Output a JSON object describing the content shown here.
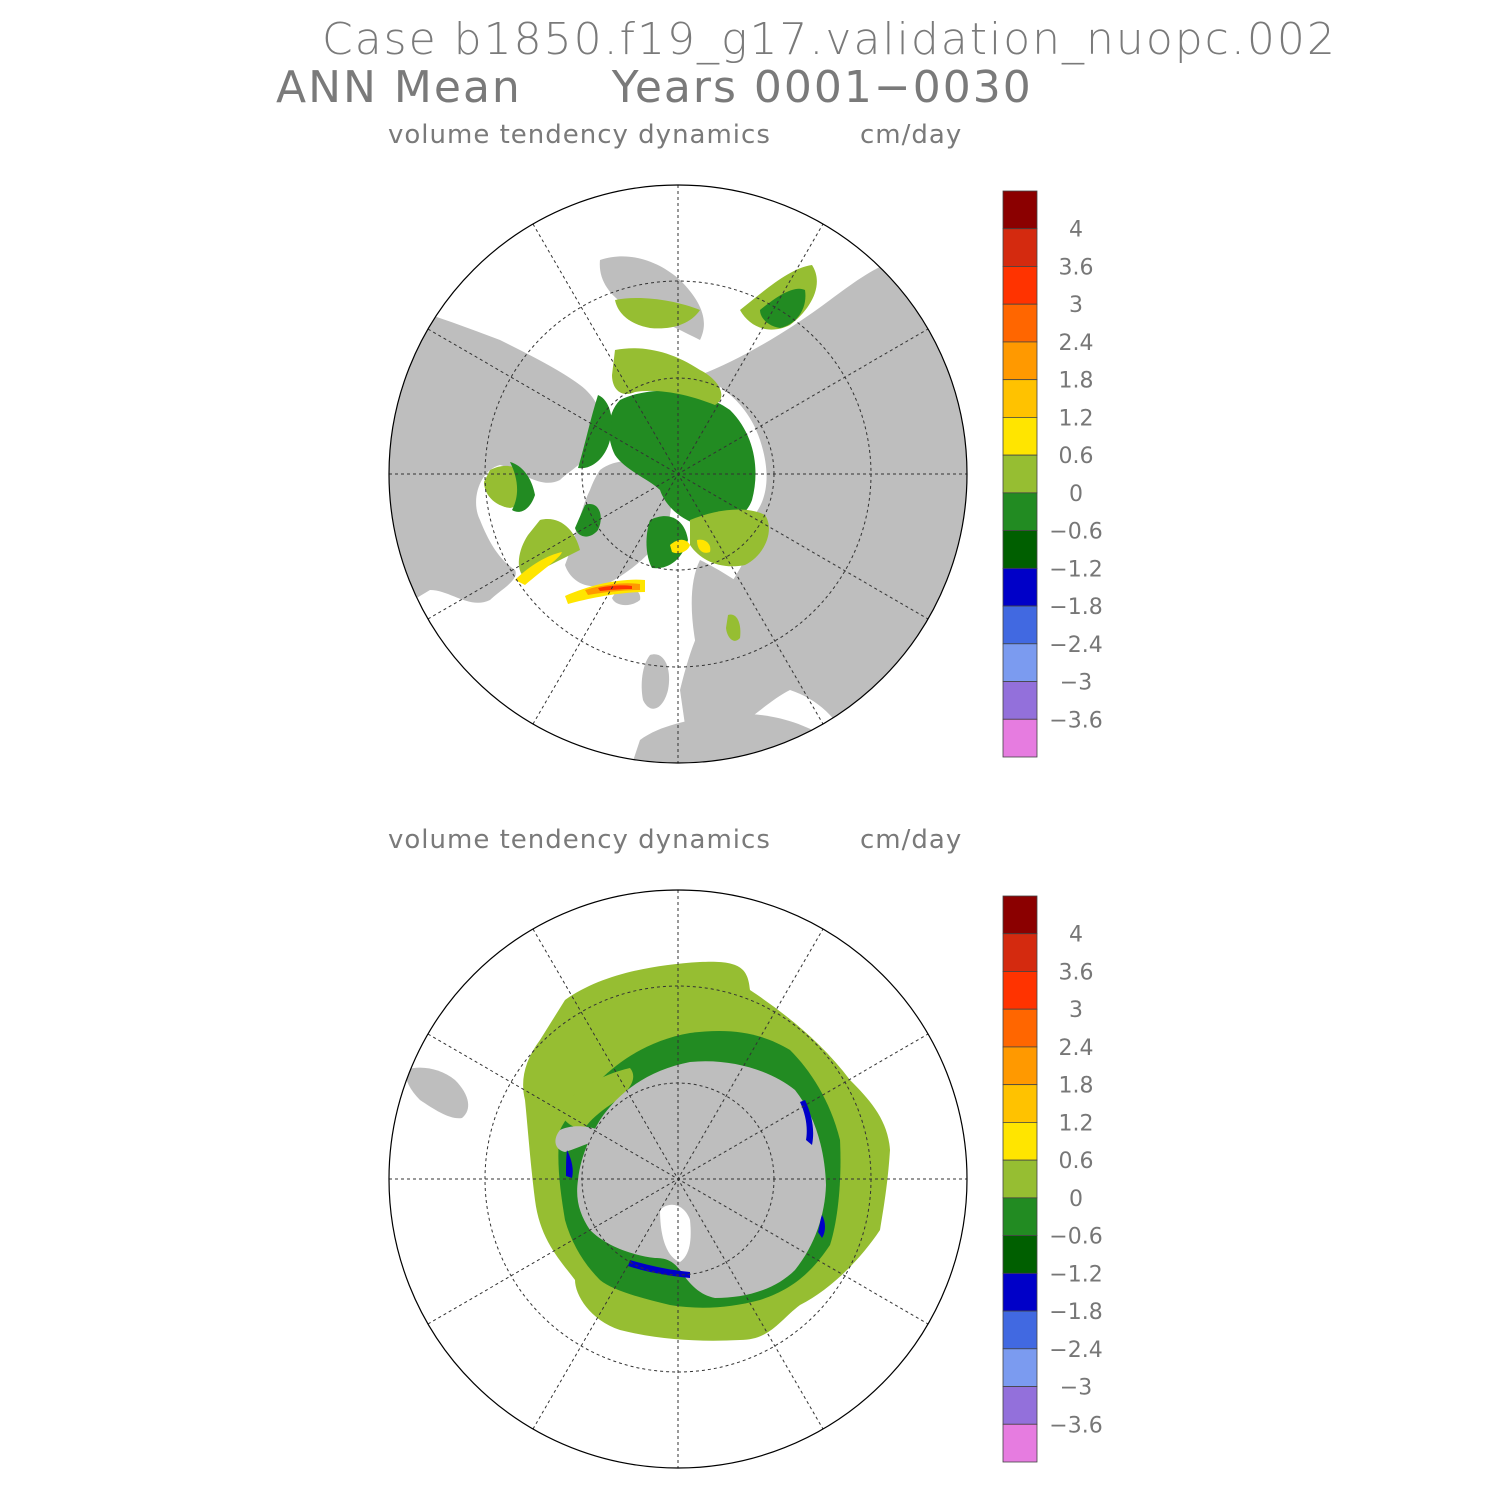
{
  "header": {
    "case_line": "Case b1850.f19_g17.validation_nuopc.002",
    "period_label": "ANN Mean",
    "years_label": "Years 0001−0030"
  },
  "panels": [
    {
      "id": "north",
      "field": "volume tendency dynamics",
      "units": "cm/day"
    },
    {
      "id": "south",
      "field": "volume tendency dynamics",
      "units": "cm/day"
    }
  ],
  "colorbar": {
    "colors": [
      "#8b0000",
      "#d42a0f",
      "#ff3300",
      "#ff6600",
      "#ff9900",
      "#ffc200",
      "#ffe500",
      "#96be32",
      "#228b22",
      "#005f00",
      "#0000c8",
      "#4169e1",
      "#7b9bf0",
      "#9370db",
      "#e67ce0"
    ],
    "tick_labels": [
      "4",
      "3.6",
      "3",
      "2.4",
      "1.8",
      "1.2",
      "0.6",
      "0",
      "−0.6",
      "−1.2",
      "−1.8",
      "−2.4",
      "−3",
      "−3.6"
    ]
  },
  "map_colors": {
    "land": "#bebebe",
    "ocean_no_ice": "#ffffff",
    "ice_positive": "#96be32",
    "ice_negative": "#228b22",
    "ice_strong_negative": "#0000c8",
    "ice_yellow": "#ffe500",
    "ice_orange": "#ff9900",
    "ice_red": "#ff3300"
  }
}
